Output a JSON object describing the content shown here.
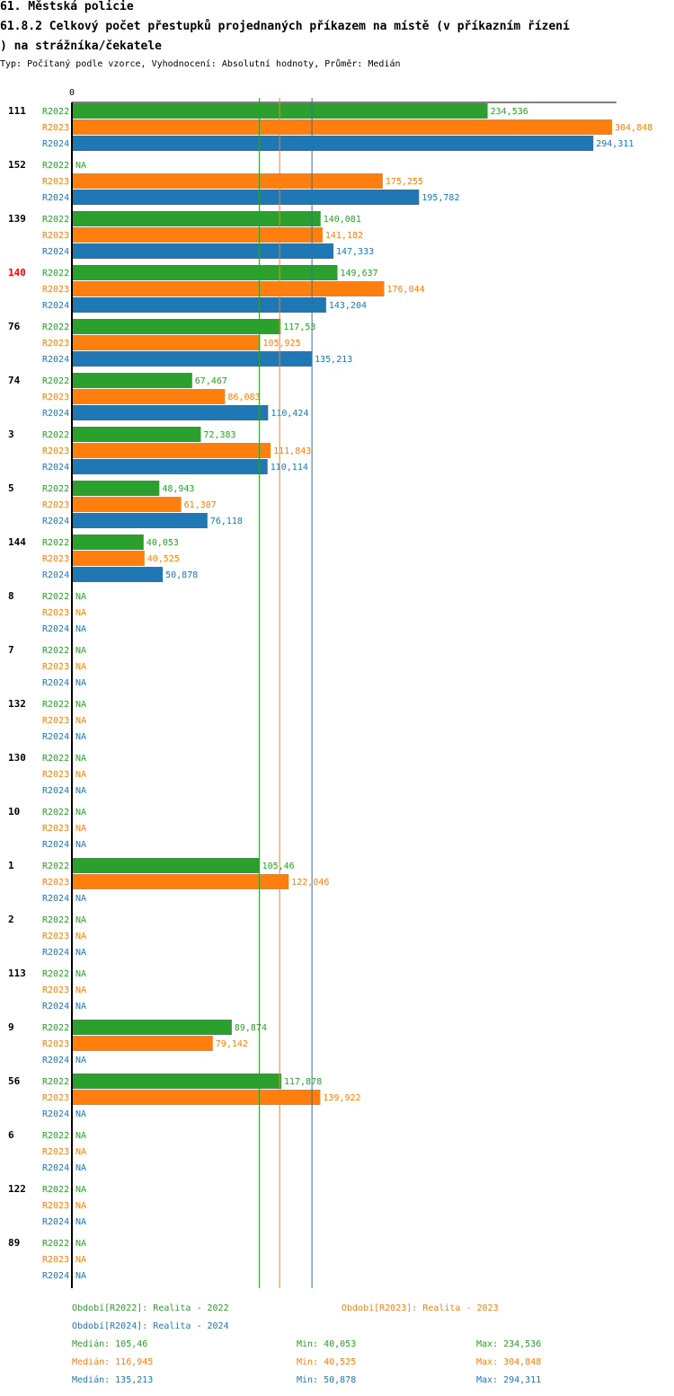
{
  "header": {
    "title_line1": "61. Městská policie",
    "title_line2": "61.8.2 Celkový počet přestupků projednaných příkazem na místě (v příkazním řízení",
    "title_line3": ") na strážníka/čekatele",
    "subtitle": "Typ: Počítaný podle vzorce, Vyhodnocení: Absolutní hodnoty, Průměr: Medián"
  },
  "colors": {
    "R2022": "#2ca02c",
    "R2023": "#ff7f0e",
    "R2024": "#1f77b4",
    "highlight": "#ff0000",
    "axis": "#000000"
  },
  "chart_data": {
    "type": "bar",
    "orientation": "horizontal",
    "axis_zero_label": "0",
    "xlim": [
      0,
      304.848
    ],
    "series_names": [
      "R2022",
      "R2023",
      "R2024"
    ],
    "na_label": "NA",
    "highlight_category": "140",
    "groups": [
      {
        "id": "111",
        "values": [
          234.536,
          304.848,
          294.311
        ],
        "labels": [
          "234,536",
          "304,848",
          "294,311"
        ]
      },
      {
        "id": "152",
        "values": [
          null,
          175.255,
          195.782
        ],
        "labels": [
          "NA",
          "175,255",
          "195,782"
        ]
      },
      {
        "id": "139",
        "values": [
          140.081,
          141.182,
          147.333
        ],
        "labels": [
          "140,081",
          "141,182",
          "147,333"
        ]
      },
      {
        "id": "140",
        "values": [
          149.637,
          176.044,
          143.204
        ],
        "labels": [
          "149,637",
          "176,044",
          "143,204"
        ]
      },
      {
        "id": "76",
        "values": [
          117.53,
          105.925,
          135.213
        ],
        "labels": [
          "117,53",
          "105,925",
          "135,213"
        ]
      },
      {
        "id": "74",
        "values": [
          67.467,
          86.083,
          110.424
        ],
        "labels": [
          "67,467",
          "86,083",
          "110,424"
        ]
      },
      {
        "id": "3",
        "values": [
          72.383,
          111.843,
          110.114
        ],
        "labels": [
          "72,383",
          "111,843",
          "110,114"
        ]
      },
      {
        "id": "5",
        "values": [
          48.943,
          61.307,
          76.118
        ],
        "labels": [
          "48,943",
          "61,307",
          "76,118"
        ]
      },
      {
        "id": "144",
        "values": [
          40.053,
          40.525,
          50.878
        ],
        "labels": [
          "40,053",
          "40,525",
          "50,878"
        ]
      },
      {
        "id": "8",
        "values": [
          null,
          null,
          null
        ],
        "labels": [
          "NA",
          "NA",
          "NA"
        ]
      },
      {
        "id": "7",
        "values": [
          null,
          null,
          null
        ],
        "labels": [
          "NA",
          "NA",
          "NA"
        ]
      },
      {
        "id": "132",
        "values": [
          null,
          null,
          null
        ],
        "labels": [
          "NA",
          "NA",
          "NA"
        ]
      },
      {
        "id": "130",
        "values": [
          null,
          null,
          null
        ],
        "labels": [
          "NA",
          "NA",
          "NA"
        ]
      },
      {
        "id": "10",
        "values": [
          null,
          null,
          null
        ],
        "labels": [
          "NA",
          "NA",
          "NA"
        ]
      },
      {
        "id": "1",
        "values": [
          105.46,
          122.046,
          null
        ],
        "labels": [
          "105,46",
          "122,046",
          "NA"
        ]
      },
      {
        "id": "2",
        "values": [
          null,
          null,
          null
        ],
        "labels": [
          "NA",
          "NA",
          "NA"
        ]
      },
      {
        "id": "113",
        "values": [
          null,
          null,
          null
        ],
        "labels": [
          "NA",
          "NA",
          "NA"
        ]
      },
      {
        "id": "9",
        "values": [
          89.874,
          79.142,
          null
        ],
        "labels": [
          "89,874",
          "79,142",
          "NA"
        ]
      },
      {
        "id": "56",
        "values": [
          117.878,
          139.922,
          null
        ],
        "labels": [
          "117,878",
          "139,922",
          "NA"
        ]
      },
      {
        "id": "6",
        "values": [
          null,
          null,
          null
        ],
        "labels": [
          "NA",
          "NA",
          "NA"
        ]
      },
      {
        "id": "122",
        "values": [
          null,
          null,
          null
        ],
        "labels": [
          "NA",
          "NA",
          "NA"
        ]
      },
      {
        "id": "89",
        "values": [
          null,
          null,
          null
        ],
        "labels": [
          "NA",
          "NA",
          "NA"
        ]
      }
    ],
    "medians": [
      105.46,
      116.945,
      135.213
    ]
  },
  "legend": {
    "r2022": "Období[R2022]: Realita - 2022",
    "r2023": "Období[R2023]: Realita - 2023",
    "r2024": "Období[R2024]: Realita - 2024"
  },
  "stats": [
    {
      "median": "Medián: 105,46",
      "min": "Min: 40,053",
      "max": "Max: 234,536"
    },
    {
      "median": "Medián: 116,945",
      "min": "Min: 40,525",
      "max": "Max: 304,848"
    },
    {
      "median": "Medián: 135,213",
      "min": "Min: 50,878",
      "max": "Max: 294,311"
    }
  ]
}
